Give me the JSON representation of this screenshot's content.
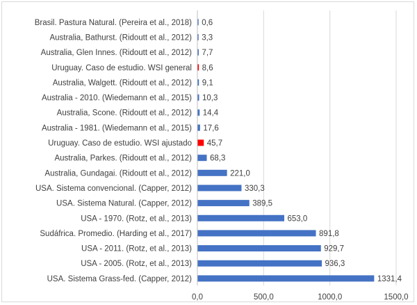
{
  "chart_data": {
    "type": "bar",
    "orientation": "horizontal",
    "title": "",
    "xlabel": "",
    "ylabel": "",
    "xlim": [
      0,
      1500
    ],
    "grid": true,
    "x_ticks": [
      "0,0",
      "500,0",
      "1000,0",
      "1500,0"
    ],
    "x_tick_values": [
      0,
      500,
      1000,
      1500
    ],
    "colors": {
      "default": "#4472c4",
      "highlight": "#ff0000",
      "grid": "#d9d9d9",
      "axis": "#bfbfbf",
      "text": "#404040"
    },
    "categories": [
      "Brasil. Pastura Natural. (Pereira et al., 2018)",
      "Australia, Bathurst. (Ridoutt et al., 2012)",
      "Australia, Glen Innes. (Ridoutt et al., 2012)",
      "Uruguay. Caso de estudio. WSI general",
      "Australia, Walgett. (Ridoutt et al., 2012)",
      "Australia - 2010. (Wiedemann et al., 2015)",
      "Australia, Scone. (Ridoutt et al., 2012)",
      "Australia - 1981. (Wiedemann et al., 2015)",
      "Uruguay. Caso de estudio. WSI ajustado",
      "Australia, Parkes. (Ridoutt et al., 2012)",
      "Australia, Gundagai. (Ridoutt et al., 2012)",
      "USA. Sistema convencional. (Capper, 2012)",
      "USA. Sistema Natural. (Capper, 2012)",
      "USA - 1970. (Rotz, et al., 2013)",
      "Sudáfrica. Promedio. (Harding et al., 2017)",
      "USA - 2011. (Rotz, et al., 2013)",
      "USA - 2005. (Rotz, et al., 2013)",
      "USA. Sistema  Grass-fed. (Capper, 2012)"
    ],
    "values": [
      0.6,
      3.3,
      7.7,
      8.6,
      9.1,
      10.3,
      14.4,
      17.6,
      45.7,
      68.3,
      221.0,
      330.3,
      389.5,
      653.0,
      891.8,
      929.7,
      936.3,
      1331.4
    ],
    "value_labels": [
      "0,6",
      "3,3",
      "7,7",
      "8,6",
      "9,1",
      "10,3",
      "14,4",
      "17,6",
      "45,7",
      "68,3",
      "221,0",
      "330,3",
      "389,5",
      "653,0",
      "891,8",
      "929,7",
      "936,3",
      "1331,4"
    ],
    "highlighted": [
      false,
      false,
      false,
      true,
      false,
      false,
      false,
      false,
      true,
      false,
      false,
      false,
      false,
      false,
      false,
      false,
      false,
      false
    ]
  }
}
